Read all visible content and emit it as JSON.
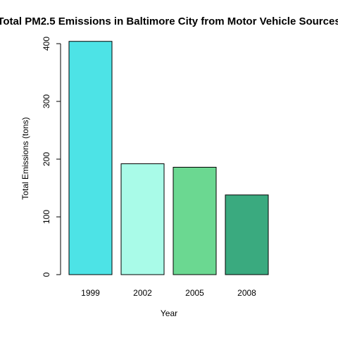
{
  "chart_data": {
    "type": "bar",
    "title": "Total PM2.5 Emissions in Baltimore City from Motor Vehicle Sources",
    "xlabel": "Year",
    "ylabel": "Total Emissions (tons)",
    "categories": [
      "1999",
      "2002",
      "2005",
      "2008"
    ],
    "values": [
      404,
      192,
      186,
      138
    ],
    "ylim": [
      0,
      400
    ],
    "yticks": [
      0,
      100,
      200,
      300,
      400
    ],
    "grid": false,
    "colors": [
      "#4DE3E6",
      "#A9FBE8",
      "#6BD891",
      "#3AAA7F"
    ]
  }
}
